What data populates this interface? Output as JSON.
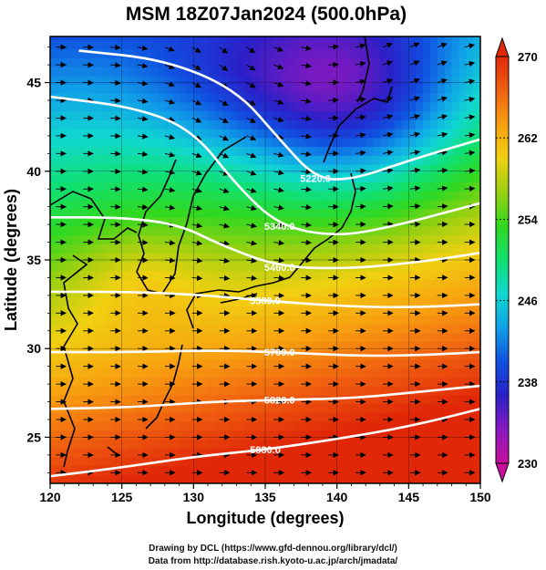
{
  "chart_data": {
    "type": "heatmap",
    "title": "MSM 18Z07Jan2024 (500.0hPa)",
    "xlabel": "Longitude (degrees)",
    "ylabel": "Latitude  (degrees)",
    "xlim": [
      120,
      150
    ],
    "ylim": [
      22.4,
      47.6
    ],
    "xticks": [
      "120",
      "125",
      "130",
      "135",
      "140",
      "145",
      "150"
    ],
    "yticks": [
      "25",
      "30",
      "35",
      "40",
      "45"
    ],
    "xtick_values": [
      120,
      125,
      130,
      135,
      140,
      145,
      150
    ],
    "ytick_values": [
      25,
      30,
      35,
      40,
      45
    ],
    "colorbar": {
      "ticks": [
        "230",
        "238",
        "246",
        "254",
        "262",
        "270"
      ],
      "tick_values": [
        230,
        238,
        246,
        254,
        262,
        270
      ],
      "range": [
        230,
        270
      ],
      "colors": [
        "#c8109c",
        "#8a18c0",
        "#2a20c8",
        "#1050e0",
        "#10a0e8",
        "#10d8d0",
        "#10e070",
        "#30d820",
        "#9ad010",
        "#f0d010",
        "#f8a010",
        "#f06010",
        "#e02808"
      ]
    },
    "contours": [
      {
        "label": "5220.0",
        "points": [
          [
            122,
            46.8
          ],
          [
            128,
            46.3
          ],
          [
            133,
            44.6
          ],
          [
            136,
            41.8
          ],
          [
            138.5,
            39.6
          ],
          [
            141,
            39.5
          ],
          [
            145,
            40.6
          ],
          [
            150,
            41.8
          ]
        ]
      },
      {
        "label": "5340.0",
        "points": [
          [
            120,
            44.2
          ],
          [
            126,
            43.6
          ],
          [
            130,
            42.3
          ],
          [
            133,
            39.2
          ],
          [
            136,
            36.9
          ],
          [
            140,
            36.3
          ],
          [
            144,
            36.9
          ],
          [
            150,
            38.2
          ]
        ]
      },
      {
        "label": "5460.0",
        "points": [
          [
            120,
            37.4
          ],
          [
            125,
            37.4
          ],
          [
            129,
            37.0
          ],
          [
            132,
            35.8
          ],
          [
            136,
            34.6
          ],
          [
            141,
            34.5
          ],
          [
            146,
            34.9
          ],
          [
            150,
            35.4
          ]
        ]
      },
      {
        "label": "5580.0",
        "points": [
          [
            120,
            33.2
          ],
          [
            126,
            33.2
          ],
          [
            131,
            33.0
          ],
          [
            135,
            32.7
          ],
          [
            140,
            32.4
          ],
          [
            145,
            32.3
          ],
          [
            150,
            32.5
          ]
        ]
      },
      {
        "label": "5700.0",
        "points": [
          [
            120,
            29.8
          ],
          [
            126,
            29.8
          ],
          [
            131,
            29.9
          ],
          [
            136,
            29.8
          ],
          [
            141,
            29.6
          ],
          [
            145,
            29.6
          ],
          [
            150,
            29.8
          ]
        ]
      },
      {
        "label": "5820.0",
        "points": [
          [
            120,
            26.6
          ],
          [
            126,
            26.7
          ],
          [
            131,
            27.0
          ],
          [
            136,
            27.1
          ],
          [
            141,
            27.2
          ],
          [
            145,
            27.5
          ],
          [
            150,
            27.9
          ]
        ]
      },
      {
        "label": "5880.0",
        "points": [
          [
            120,
            22.8
          ],
          [
            125,
            23.3
          ],
          [
            130,
            23.9
          ],
          [
            135,
            24.3
          ],
          [
            140,
            24.9
          ],
          [
            145,
            25.6
          ],
          [
            150,
            26.6
          ]
        ]
      }
    ]
  },
  "footer": {
    "line1": "Drawing by DCL (https://www.gfd-dennou.org/library/dcl/)",
    "line2": "Data from http://database.rish.kyoto-u.ac.jp/arch/jmadata/"
  }
}
